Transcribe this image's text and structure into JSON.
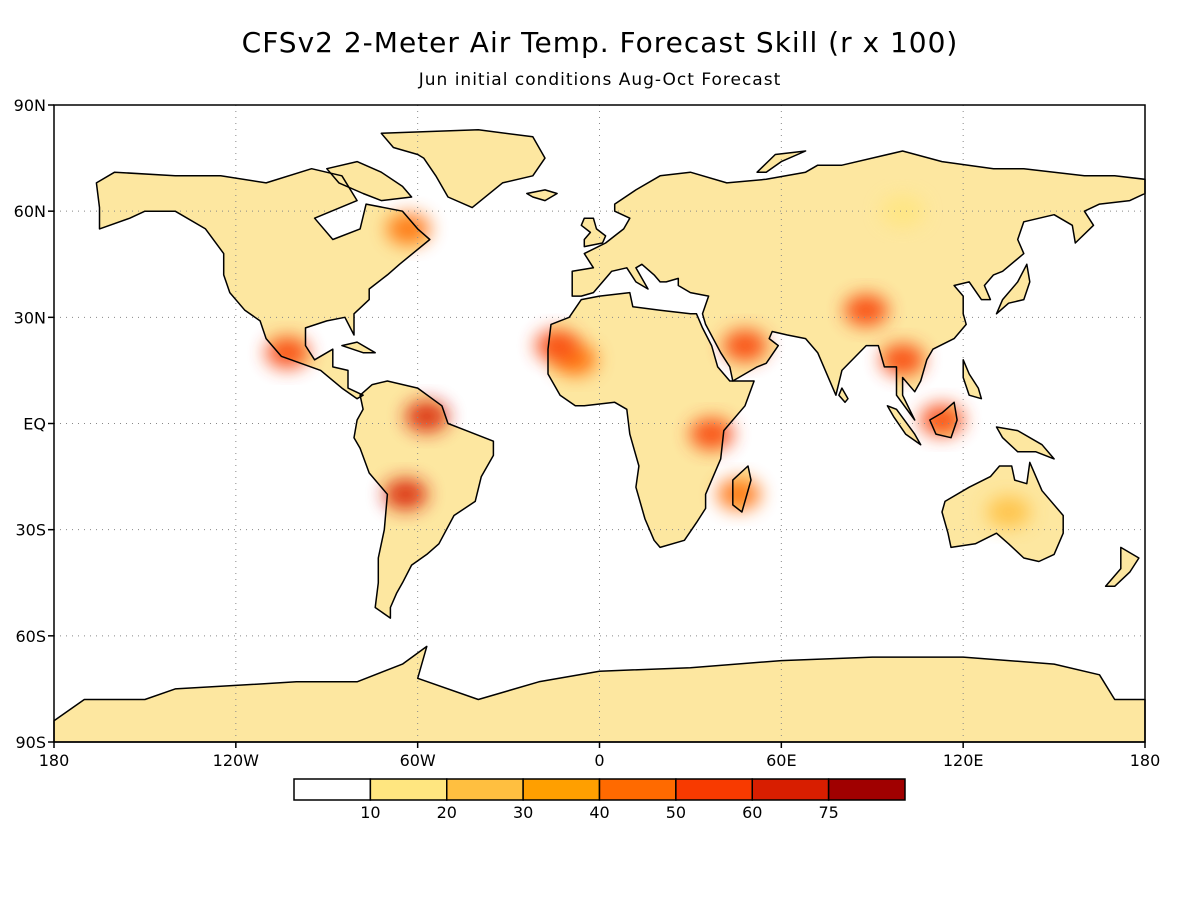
{
  "title": "CFSv2 2-Meter Air Temp. Forecast Skill (r x 100)",
  "subtitle": "Jun initial conditions  Aug-Oct Forecast",
  "map": {
    "projection": "cylindrical equidistant",
    "lon_range": [
      -180,
      180
    ],
    "lat_range": [
      -90,
      90
    ],
    "grid": true,
    "lat_ticks": [
      {
        "value": 90,
        "label": "90N"
      },
      {
        "value": 60,
        "label": "60N"
      },
      {
        "value": 30,
        "label": "30N"
      },
      {
        "value": 0,
        "label": "EQ"
      },
      {
        "value": -30,
        "label": "30S"
      },
      {
        "value": -60,
        "label": "60S"
      },
      {
        "value": -90,
        "label": "90S"
      }
    ],
    "lon_ticks": [
      {
        "value": -180,
        "label": "180"
      },
      {
        "value": -120,
        "label": "120W"
      },
      {
        "value": -60,
        "label": "60W"
      },
      {
        "value": 0,
        "label": "0"
      },
      {
        "value": 60,
        "label": "60E"
      },
      {
        "value": 120,
        "label": "120E"
      },
      {
        "value": 180,
        "label": "180"
      }
    ]
  },
  "colorbar": {
    "bins": [
      {
        "color": "#ffffff"
      },
      {
        "color": "#ffe680"
      },
      {
        "color": "#ffbf40"
      },
      {
        "color": "#ff9f00"
      },
      {
        "color": "#ff6a00"
      },
      {
        "color": "#f83a00"
      },
      {
        "color": "#d81e00"
      },
      {
        "color": "#a00000"
      }
    ],
    "labels": [
      "10",
      "20",
      "30",
      "40",
      "50",
      "60",
      "75"
    ]
  },
  "skill_regions": [
    {
      "region": "West Africa / Sahel",
      "lon": -8,
      "lat": 18,
      "level": 40
    },
    {
      "region": "Mauritania coast",
      "lon": -14,
      "lat": 22,
      "level": 50
    },
    {
      "region": "Arabian Peninsula",
      "lon": 48,
      "lat": 22,
      "level": 50
    },
    {
      "region": "Tibetan Plateau",
      "lon": 88,
      "lat": 32,
      "level": 50
    },
    {
      "region": "Southeast Asia",
      "lon": 100,
      "lat": 18,
      "level": 50
    },
    {
      "region": "Borneo",
      "lon": 113,
      "lat": 1,
      "level": 50
    },
    {
      "region": "Amazon north",
      "lon": -57,
      "lat": 2,
      "level": 60
    },
    {
      "region": "South America interior",
      "lon": -64,
      "lat": -20,
      "level": 60
    },
    {
      "region": "Labrador",
      "lon": -63,
      "lat": 55,
      "level": 40
    },
    {
      "region": "Mexico",
      "lon": -103,
      "lat": 20,
      "level": 50
    },
    {
      "region": "East Africa",
      "lon": 37,
      "lat": -3,
      "level": 50
    },
    {
      "region": "Madagascar",
      "lon": 46,
      "lat": -20,
      "level": 40
    },
    {
      "region": "Australia",
      "lon": 135,
      "lat": -25,
      "level": 20
    },
    {
      "region": "Siberia",
      "lon": 100,
      "lat": 60,
      "level": 10
    }
  ]
}
